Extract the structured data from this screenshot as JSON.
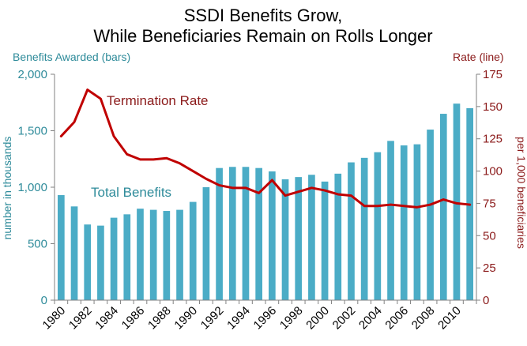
{
  "chart_data": {
    "type": "bar",
    "title_line1": "SSDI Benefits Grow,",
    "title_line2": "While Beneficiaries Remain on Rolls Longer",
    "left_axis_caption": "Benefits Awarded  (bars)",
    "right_axis_caption": "Rate (line)",
    "ylabel_left": "number in thousands",
    "ylabel_right": "per 1,000 beneficiaries",
    "ylim_left": [
      0,
      2000
    ],
    "ylim_right": [
      0,
      175
    ],
    "yticks_left": [
      "0",
      "500",
      "1,000",
      "1,500",
      "2,000"
    ],
    "yticks_left_values": [
      0,
      500,
      1000,
      1500,
      2000
    ],
    "yticks_right": [
      "0",
      "25",
      "50",
      "75",
      "100",
      "125",
      "150",
      "175"
    ],
    "yticks_right_values": [
      0,
      25,
      50,
      75,
      100,
      125,
      150,
      175
    ],
    "x": [
      1980,
      1981,
      1982,
      1983,
      1984,
      1985,
      1986,
      1987,
      1988,
      1989,
      1990,
      1991,
      1992,
      1993,
      1994,
      1995,
      1996,
      1997,
      1998,
      1999,
      2000,
      2001,
      2002,
      2003,
      2004,
      2005,
      2006,
      2007,
      2008,
      2009,
      2010,
      2011
    ],
    "x_tick_labels": [
      "1980",
      "1982",
      "1984",
      "1986",
      "1988",
      "1990",
      "1992",
      "1994",
      "1996",
      "1998",
      "2000",
      "2002",
      "2004",
      "2006",
      "2008",
      "2010"
    ],
    "series": [
      {
        "name": "Total Benefits",
        "kind": "bar",
        "axis": "left",
        "color": "#4BACC6",
        "values": [
          930,
          830,
          670,
          660,
          730,
          760,
          810,
          800,
          790,
          800,
          870,
          1000,
          1170,
          1180,
          1180,
          1170,
          1140,
          1070,
          1090,
          1110,
          1050,
          1120,
          1220,
          1260,
          1310,
          1410,
          1370,
          1380,
          1510,
          1650,
          1740,
          1700
        ]
      },
      {
        "name": "Termination Rate",
        "kind": "line",
        "axis": "right",
        "color": "#C00000",
        "values": [
          127,
          138,
          163,
          156,
          127,
          113,
          109,
          109,
          110,
          106,
          100,
          94,
          89,
          87,
          87,
          83,
          93,
          81,
          84,
          87,
          85,
          82,
          81,
          73,
          73,
          74,
          73,
          72,
          74,
          78,
          75,
          74
        ]
      }
    ],
    "colors": {
      "left_axis_text": "#2E8B9A",
      "right_axis_text": "#8B1A1A",
      "annotation_bar": "#2E8B9A",
      "annotation_line": "#8B1A1A",
      "axis_line": "#808080"
    }
  }
}
